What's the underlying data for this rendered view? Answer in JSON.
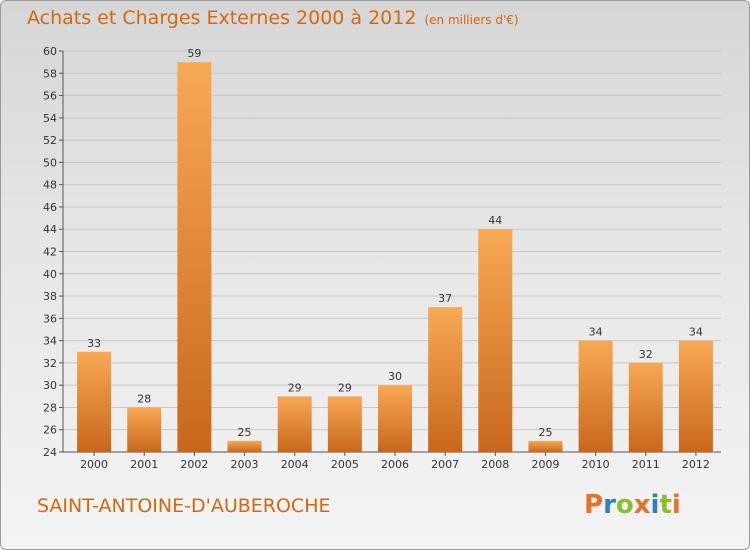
{
  "header": {
    "title": "Achats et Charges Externes 2000 à 2012",
    "subtitle": "(en milliers d'€)"
  },
  "footer": {
    "commune": "SAINT-ANTOINE-D'AUBEROCHE",
    "logo": [
      "P",
      "r",
      "o",
      "x",
      "i",
      "t",
      "i"
    ]
  },
  "colors": {
    "title": "#d4680f",
    "bar_light": "#f8a955",
    "bar_dark": "#c8671c",
    "logo": [
      "#e8702a",
      "#2f7fc4",
      "#8cbf26",
      "#e8702a",
      "#2f7fc4",
      "#8cbf26",
      "#e8702a"
    ]
  },
  "chart_data": {
    "type": "bar",
    "categories": [
      "2000",
      "2001",
      "2002",
      "2003",
      "2004",
      "2005",
      "2006",
      "2007",
      "2008",
      "2009",
      "2010",
      "2011",
      "2012"
    ],
    "values": [
      33,
      28,
      59,
      25,
      29,
      29,
      30,
      37,
      44,
      25,
      34,
      32,
      34
    ],
    "ylim": [
      24,
      60
    ],
    "yticks": [
      24,
      26,
      28,
      30,
      32,
      34,
      36,
      38,
      40,
      42,
      44,
      46,
      48,
      50,
      52,
      54,
      56,
      58,
      60
    ],
    "grid": true
  }
}
